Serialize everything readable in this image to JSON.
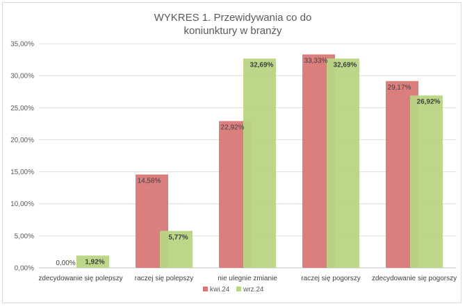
{
  "chart_data": {
    "type": "bar",
    "title_lines": [
      "WYKRES 1. Przewidywania co do",
      "koniunktury w branży"
    ],
    "categories": [
      "zdecydowanie się polepszy",
      "raczej się polepszy",
      "nie ulegnie zmianie",
      "raczej się pogorszy",
      "zdecydowanie się pogorszy"
    ],
    "series": [
      {
        "name": "kwi.24",
        "color": "#d97777",
        "values": [
          0.0,
          14.58,
          22.92,
          33.33,
          29.17
        ],
        "labels": [
          "0,00%",
          "14,58%",
          "22,92%",
          "33,33%",
          "29,17%"
        ],
        "label_bold": false
      },
      {
        "name": "wrz.24",
        "color": "#b8d584",
        "values": [
          1.92,
          5.77,
          32.69,
          32.69,
          26.92
        ],
        "labels": [
          "1,92%",
          "5,77%",
          "32,69%",
          "32,69%",
          "26,92%"
        ],
        "label_bold": true
      }
    ],
    "y_ticks": [
      "0,00%",
      "5,00%",
      "10,00%",
      "15,00%",
      "20,00%",
      "25,00%",
      "30,00%",
      "35,00%"
    ],
    "ylim": [
      0,
      35
    ],
    "y_step": 5,
    "grid": true,
    "legend_position": "bottom"
  }
}
